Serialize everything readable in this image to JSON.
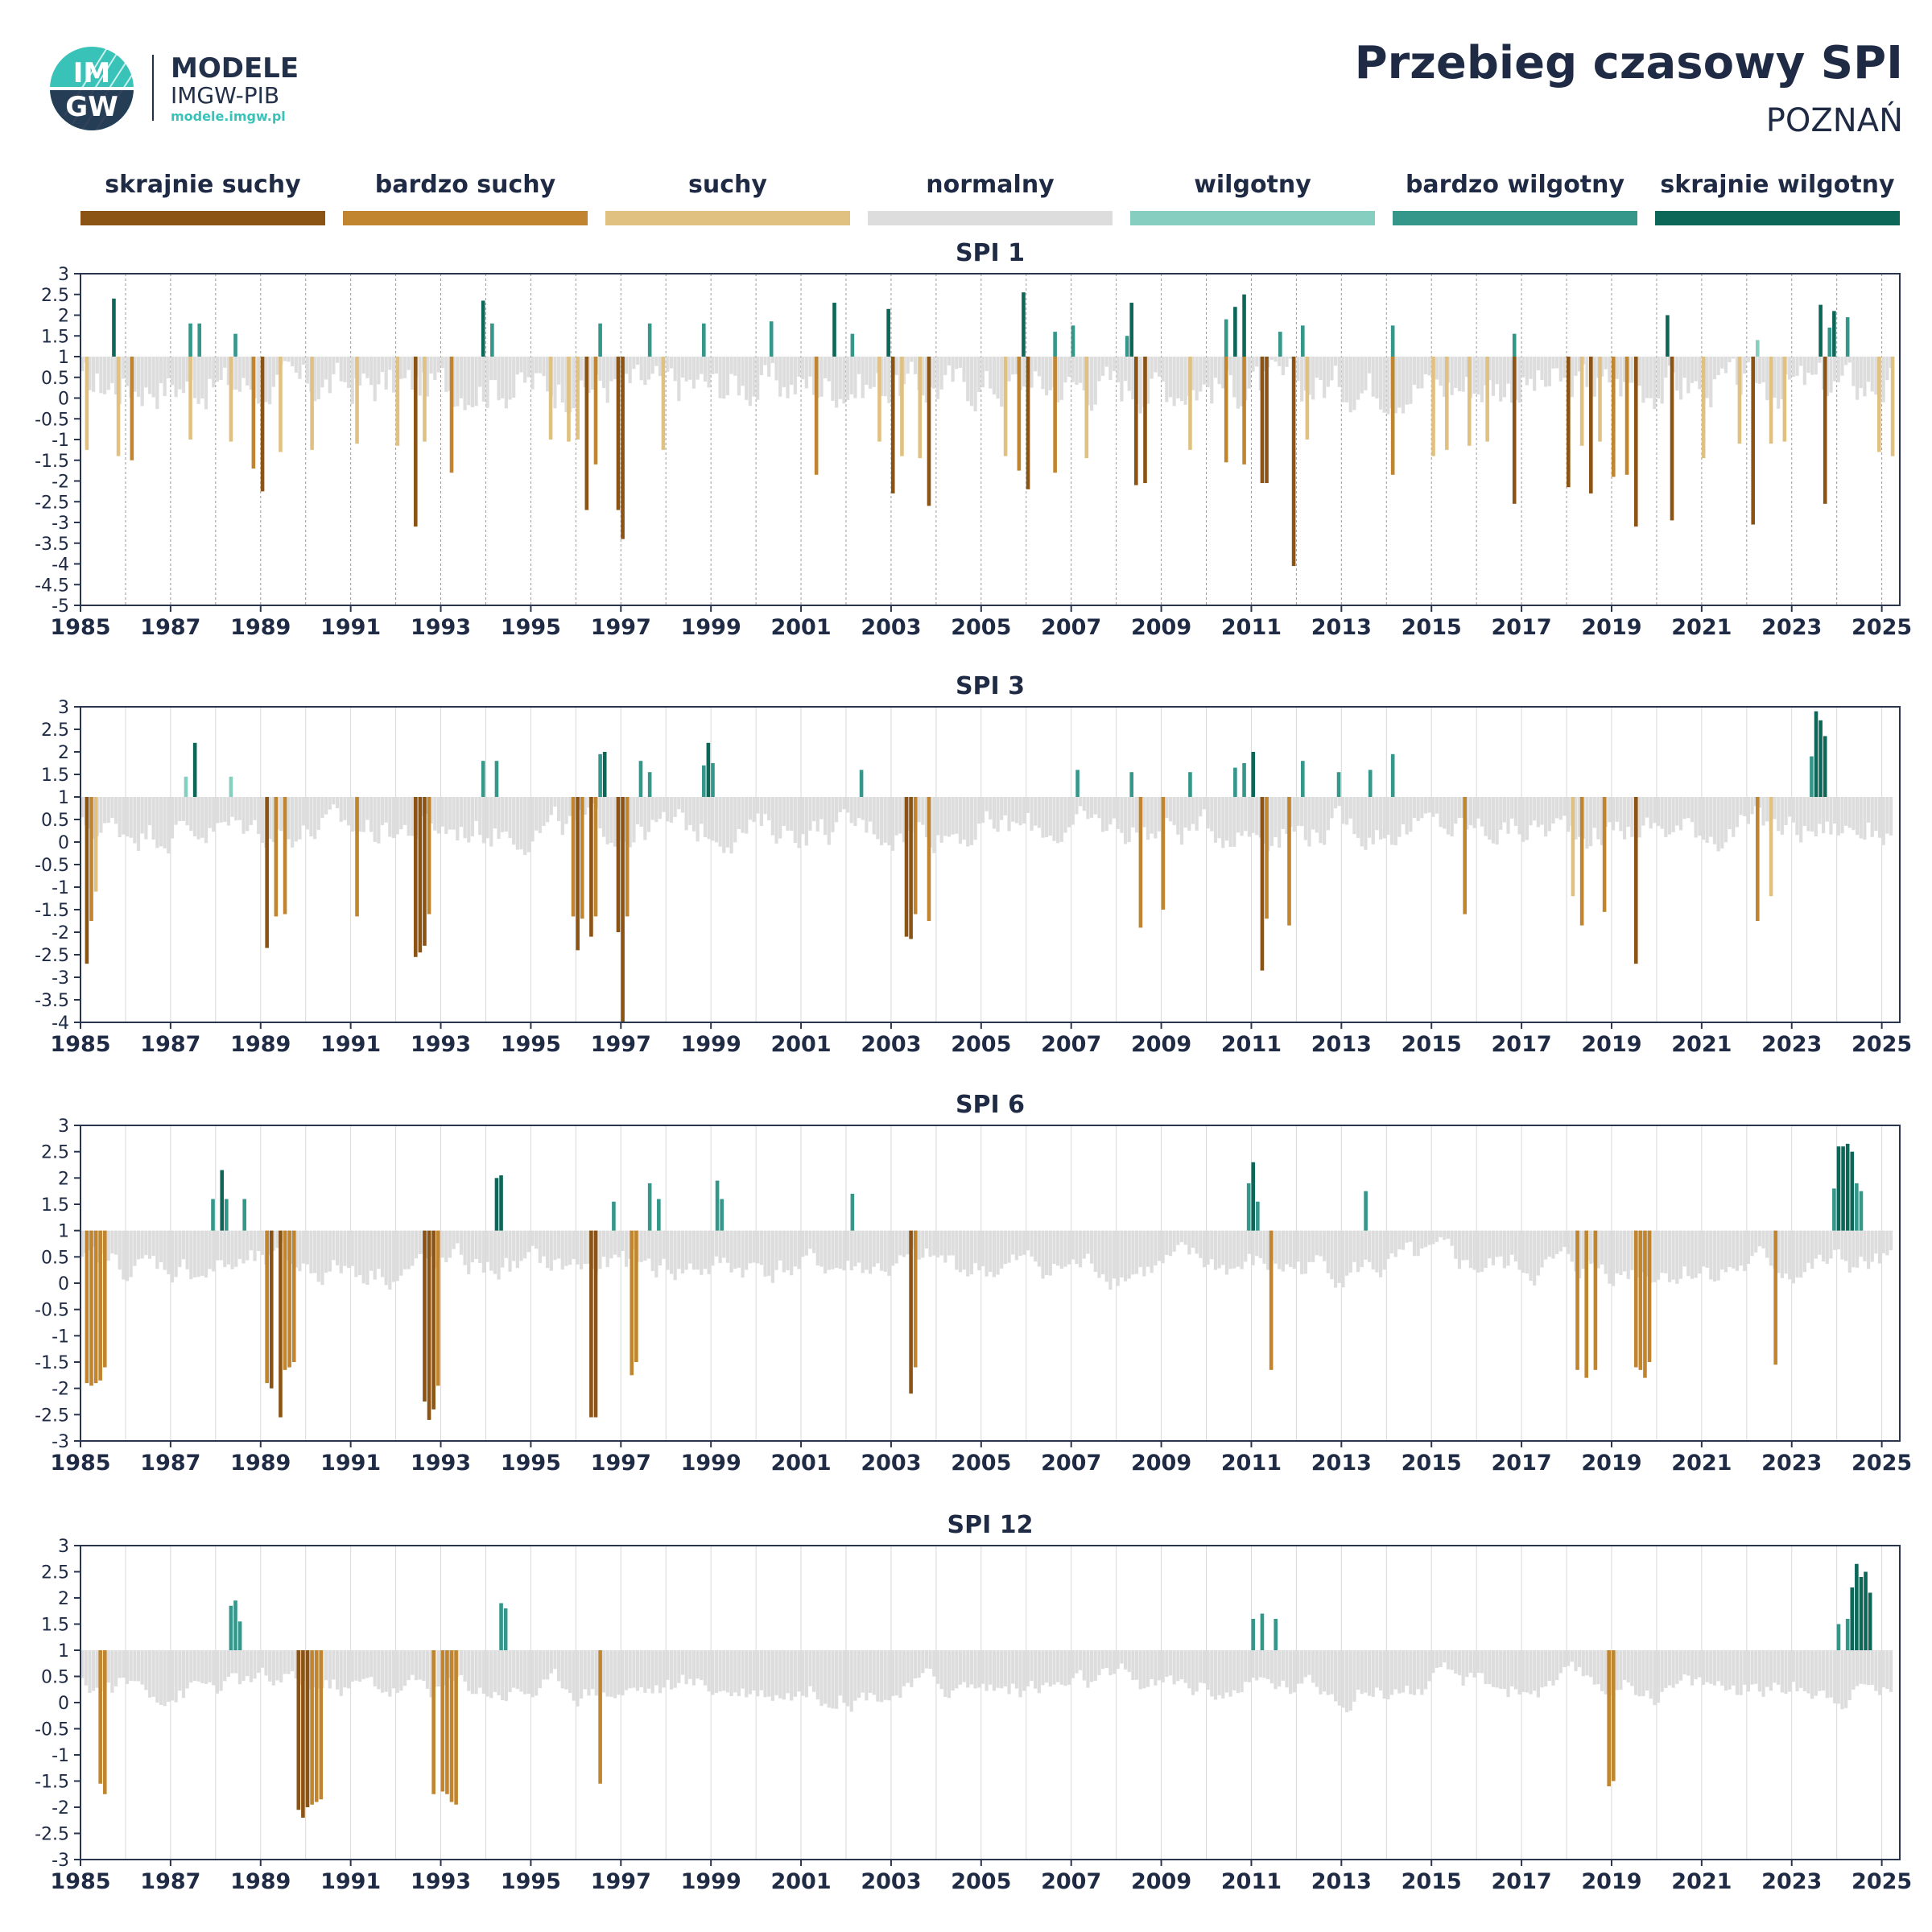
{
  "header": {
    "brand_title": "MODELE",
    "brand_subtitle": "IMGW-PIB",
    "brand_url": "modele.imgw.pl",
    "logo_text_top": "IM",
    "logo_text_bottom": "GW",
    "title": "Przebieg czasowy SPI",
    "subtitle": "POZNAŃ"
  },
  "legend": [
    {
      "label": "skrajnie suchy",
      "color": "#8c5414"
    },
    {
      "label": "bardzo suchy",
      "color": "#c0852e"
    },
    {
      "label": "suchy",
      "color": "#e0c182"
    },
    {
      "label": "normalny",
      "color": "#dddddd"
    },
    {
      "label": "wilgotny",
      "color": "#86cfc0"
    },
    {
      "label": "bardzo wilgotny",
      "color": "#35968a"
    },
    {
      "label": "skrajnie wilgotny",
      "color": "#0d6758"
    }
  ],
  "chart_data": [
    {
      "type": "bar",
      "title": "SPI 1",
      "x_ticks": [
        "1985",
        "1987",
        "1989",
        "1991",
        "1993",
        "1995",
        "1997",
        "1999",
        "2001",
        "2003",
        "2005",
        "2007",
        "2009",
        "2011",
        "2013",
        "2015",
        "2017",
        "2019",
        "2021",
        "2023",
        "2025"
      ],
      "y_ticks": [
        "3",
        "2.5",
        "2",
        "1.5",
        "1",
        "0.5",
        "0",
        "-0.5",
        "-1",
        "-1.5",
        "-2",
        "-2.5",
        "-3",
        "-3.5",
        "-4",
        "-4.5",
        "-5"
      ],
      "y_range": [
        -5,
        3
      ],
      "x_range": [
        1985,
        2025.4
      ],
      "events": [
        [
          1985.7,
          2.4
        ],
        [
          1987.4,
          1.8
        ],
        [
          1987.6,
          1.8
        ],
        [
          1988.4,
          1.55
        ],
        [
          1993.9,
          2.35
        ],
        [
          1994.1,
          1.8
        ],
        [
          1996.5,
          1.8
        ],
        [
          1997.6,
          1.8
        ],
        [
          1998.8,
          1.8
        ],
        [
          2000.3,
          1.85
        ],
        [
          2001.7,
          2.3
        ],
        [
          2002.1,
          1.55
        ],
        [
          2002.9,
          2.15
        ],
        [
          2005.9,
          2.55
        ],
        [
          2006.6,
          1.6
        ],
        [
          2007.0,
          1.75
        ],
        [
          2008.2,
          1.5
        ],
        [
          2008.3,
          2.3
        ],
        [
          2010.4,
          1.9
        ],
        [
          2010.6,
          2.2
        ],
        [
          2010.8,
          2.5
        ],
        [
          2011.6,
          1.6
        ],
        [
          2012.1,
          1.75
        ],
        [
          2014.1,
          1.75
        ],
        [
          2016.8,
          1.55
        ],
        [
          2020.2,
          2.0
        ],
        [
          2022.2,
          1.4
        ],
        [
          2023.6,
          2.25
        ],
        [
          2023.8,
          1.7
        ],
        [
          2023.9,
          2.1
        ],
        [
          2024.2,
          1.95
        ],
        [
          1985.1,
          -1.25
        ],
        [
          1985.8,
          -1.4
        ],
        [
          1986.1,
          -1.5
        ],
        [
          1987.4,
          -1.0
        ],
        [
          1988.3,
          -1.05
        ],
        [
          1988.8,
          -1.7
        ],
        [
          1989.0,
          -2.25
        ],
        [
          1989.4,
          -1.3
        ],
        [
          1990.1,
          -1.25
        ],
        [
          1991.1,
          -1.1
        ],
        [
          1992.0,
          -1.15
        ],
        [
          1992.4,
          -3.1
        ],
        [
          1992.6,
          -1.05
        ],
        [
          1993.2,
          -1.8
        ],
        [
          1995.4,
          -1.0
        ],
        [
          1995.8,
          -1.05
        ],
        [
          1996.0,
          -1.0
        ],
        [
          1996.2,
          -2.7
        ],
        [
          1996.4,
          -1.6
        ],
        [
          1996.9,
          -2.7
        ],
        [
          1997.0,
          -3.4
        ],
        [
          1997.9,
          -1.25
        ],
        [
          2001.3,
          -1.85
        ],
        [
          2002.7,
          -1.05
        ],
        [
          2003.0,
          -2.3
        ],
        [
          2003.2,
          -1.4
        ],
        [
          2003.6,
          -1.45
        ],
        [
          2003.8,
          -2.6
        ],
        [
          2005.5,
          -1.4
        ],
        [
          2005.8,
          -1.75
        ],
        [
          2006.0,
          -2.2
        ],
        [
          2006.6,
          -1.8
        ],
        [
          2007.3,
          -1.45
        ],
        [
          2008.4,
          -2.1
        ],
        [
          2008.6,
          -2.05
        ],
        [
          2009.6,
          -1.25
        ],
        [
          2010.4,
          -1.55
        ],
        [
          2010.8,
          -1.6
        ],
        [
          2011.2,
          -2.05
        ],
        [
          2011.3,
          -2.05
        ],
        [
          2011.9,
          -4.05
        ],
        [
          2012.2,
          -1.0
        ],
        [
          2014.1,
          -1.85
        ],
        [
          2015.0,
          -1.4
        ],
        [
          2015.3,
          -1.25
        ],
        [
          2015.8,
          -1.15
        ],
        [
          2016.2,
          -1.05
        ],
        [
          2016.8,
          -2.55
        ],
        [
          2018.0,
          -2.15
        ],
        [
          2018.3,
          -1.15
        ],
        [
          2018.5,
          -2.3
        ],
        [
          2018.7,
          -1.05
        ],
        [
          2019.0,
          -1.9
        ],
        [
          2019.3,
          -1.85
        ],
        [
          2019.5,
          -3.1
        ],
        [
          2020.3,
          -2.95
        ],
        [
          2021.0,
          -1.45
        ],
        [
          2021.8,
          -1.1
        ],
        [
          2022.1,
          -3.05
        ],
        [
          2022.5,
          -1.1
        ],
        [
          2022.8,
          -1.05
        ],
        [
          2023.7,
          -2.55
        ],
        [
          2024.9,
          -1.3
        ],
        [
          2025.2,
          -1.4
        ]
      ]
    },
    {
      "type": "bar",
      "title": "SPI 3",
      "x_ticks": [
        "1985",
        "1987",
        "1989",
        "1991",
        "1993",
        "1995",
        "1997",
        "1999",
        "2001",
        "2003",
        "2005",
        "2007",
        "2009",
        "2011",
        "2013",
        "2015",
        "2017",
        "2019",
        "2021",
        "2023",
        "2025"
      ],
      "y_ticks": [
        "3",
        "2.5",
        "2",
        "1.5",
        "1",
        "0.5",
        "0",
        "-0.5",
        "-1",
        "-1.5",
        "-2",
        "-2.5",
        "-3",
        "-3.5",
        "-4"
      ],
      "y_range": [
        -4,
        3
      ],
      "x_range": [
        1985,
        2025.4
      ],
      "events": [
        [
          1987.5,
          2.2
        ],
        [
          1987.3,
          1.45
        ],
        [
          1988.3,
          1.45
        ],
        [
          1993.9,
          1.8
        ],
        [
          1994.2,
          1.8
        ],
        [
          1996.5,
          1.95
        ],
        [
          1996.6,
          2.0
        ],
        [
          1997.4,
          1.8
        ],
        [
          1997.6,
          1.55
        ],
        [
          1998.8,
          1.7
        ],
        [
          1998.9,
          2.2
        ],
        [
          1999.0,
          1.75
        ],
        [
          2002.3,
          1.6
        ],
        [
          2007.1,
          1.6
        ],
        [
          2008.3,
          1.55
        ],
        [
          2009.6,
          1.55
        ],
        [
          2010.6,
          1.65
        ],
        [
          2010.8,
          1.75
        ],
        [
          2011.0,
          2.0
        ],
        [
          2012.1,
          1.8
        ],
        [
          2012.9,
          1.55
        ],
        [
          2013.6,
          1.6
        ],
        [
          2014.1,
          1.95
        ],
        [
          2023.4,
          1.9
        ],
        [
          2023.5,
          2.9
        ],
        [
          2023.6,
          2.7
        ],
        [
          2023.7,
          2.35
        ],
        [
          1985.1,
          -2.7
        ],
        [
          1985.2,
          -1.75
        ],
        [
          1985.3,
          -1.1
        ],
        [
          1989.1,
          -2.35
        ],
        [
          1989.3,
          -1.65
        ],
        [
          1989.5,
          -1.6
        ],
        [
          1991.1,
          -1.65
        ],
        [
          1992.4,
          -2.55
        ],
        [
          1992.5,
          -2.45
        ],
        [
          1992.6,
          -2.3
        ],
        [
          1992.7,
          -1.6
        ],
        [
          1995.9,
          -1.65
        ],
        [
          1996.0,
          -2.4
        ],
        [
          1996.1,
          -1.7
        ],
        [
          1996.3,
          -2.1
        ],
        [
          1996.4,
          -1.65
        ],
        [
          1996.9,
          -2.0
        ],
        [
          1997.0,
          -4.0
        ],
        [
          1997.1,
          -1.65
        ],
        [
          2003.3,
          -2.1
        ],
        [
          2003.4,
          -2.15
        ],
        [
          2003.5,
          -1.6
        ],
        [
          2003.8,
          -1.75
        ],
        [
          2008.5,
          -1.9
        ],
        [
          2009.0,
          -1.5
        ],
        [
          2011.2,
          -2.85
        ],
        [
          2011.3,
          -1.7
        ],
        [
          2011.8,
          -1.85
        ],
        [
          2015.7,
          -1.6
        ],
        [
          2018.1,
          -1.2
        ],
        [
          2018.3,
          -1.85
        ],
        [
          2018.8,
          -1.55
        ],
        [
          2019.5,
          -2.7
        ],
        [
          2022.2,
          -1.75
        ],
        [
          2022.5,
          -1.2
        ]
      ]
    },
    {
      "type": "bar",
      "title": "SPI 6",
      "x_ticks": [
        "1985",
        "1987",
        "1989",
        "1991",
        "1993",
        "1995",
        "1997",
        "1999",
        "2001",
        "2003",
        "2005",
        "2007",
        "2009",
        "2011",
        "2013",
        "2015",
        "2017",
        "2019",
        "2021",
        "2023",
        "2025"
      ],
      "y_ticks": [
        "3",
        "2.5",
        "2",
        "1.5",
        "1",
        "0.5",
        "0",
        "-0.5",
        "-1",
        "-1.5",
        "-2",
        "-2.5",
        "-3"
      ],
      "y_range": [
        -3,
        3
      ],
      "x_range": [
        1985,
        2025.4
      ],
      "events": [
        [
          1987.9,
          1.6
        ],
        [
          1988.1,
          2.15
        ],
        [
          1988.2,
          1.6
        ],
        [
          1988.6,
          1.6
        ],
        [
          1994.2,
          2.0
        ],
        [
          1994.3,
          2.05
        ],
        [
          1996.8,
          1.55
        ],
        [
          1997.6,
          1.9
        ],
        [
          1997.8,
          1.6
        ],
        [
          1999.1,
          1.95
        ],
        [
          1999.2,
          1.6
        ],
        [
          2002.1,
          1.7
        ],
        [
          2010.9,
          1.9
        ],
        [
          2011.0,
          2.3
        ],
        [
          2011.1,
          1.55
        ],
        [
          2013.5,
          1.75
        ],
        [
          2023.9,
          1.8
        ],
        [
          2024.0,
          2.6
        ],
        [
          2024.1,
          2.6
        ],
        [
          2024.2,
          2.65
        ],
        [
          2024.3,
          2.5
        ],
        [
          2024.4,
          1.9
        ],
        [
          2024.5,
          1.75
        ],
        [
          1985.1,
          -1.9
        ],
        [
          1985.2,
          -1.95
        ],
        [
          1985.3,
          -1.9
        ],
        [
          1985.4,
          -1.85
        ],
        [
          1985.5,
          -1.6
        ],
        [
          1989.1,
          -1.9
        ],
        [
          1989.2,
          -2.0
        ],
        [
          1989.4,
          -2.55
        ],
        [
          1989.5,
          -1.65
        ],
        [
          1989.6,
          -1.6
        ],
        [
          1989.7,
          -1.5
        ],
        [
          1992.6,
          -2.25
        ],
        [
          1992.7,
          -2.6
        ],
        [
          1992.8,
          -2.4
        ],
        [
          1992.9,
          -1.95
        ],
        [
          1996.3,
          -2.55
        ],
        [
          1996.4,
          -2.55
        ],
        [
          1997.2,
          -1.75
        ],
        [
          1997.3,
          -1.5
        ],
        [
          2003.4,
          -2.1
        ],
        [
          2003.5,
          -1.6
        ],
        [
          2011.4,
          -1.65
        ],
        [
          2018.2,
          -1.65
        ],
        [
          2018.4,
          -1.8
        ],
        [
          2018.6,
          -1.65
        ],
        [
          2019.5,
          -1.6
        ],
        [
          2019.6,
          -1.65
        ],
        [
          2019.7,
          -1.8
        ],
        [
          2019.8,
          -1.5
        ],
        [
          2022.6,
          -1.55
        ]
      ]
    },
    {
      "type": "bar",
      "title": "SPI 12",
      "x_ticks": [
        "1985",
        "1987",
        "1989",
        "1991",
        "1993",
        "1995",
        "1997",
        "1999",
        "2001",
        "2003",
        "2005",
        "2007",
        "2009",
        "2011",
        "2013",
        "2015",
        "2017",
        "2019",
        "2021",
        "2023",
        "2025"
      ],
      "y_ticks": [
        "3",
        "2.5",
        "2",
        "1.5",
        "1",
        "0.5",
        "0",
        "-0.5",
        "-1",
        "-1.5",
        "-2",
        "-2.5",
        "-3"
      ],
      "y_range": [
        -3,
        3
      ],
      "x_range": [
        1985,
        2025.4
      ],
      "events": [
        [
          1988.3,
          1.85
        ],
        [
          1988.4,
          1.95
        ],
        [
          1988.5,
          1.55
        ],
        [
          1994.3,
          1.9
        ],
        [
          1994.4,
          1.8
        ],
        [
          2011.0,
          1.6
        ],
        [
          2011.2,
          1.7
        ],
        [
          2011.5,
          1.6
        ],
        [
          2024.0,
          1.5
        ],
        [
          2024.2,
          1.6
        ],
        [
          2024.3,
          2.2
        ],
        [
          2024.4,
          2.65
        ],
        [
          2024.5,
          2.4
        ],
        [
          2024.6,
          2.5
        ],
        [
          2024.7,
          2.1
        ],
        [
          1985.4,
          -1.55
        ],
        [
          1985.5,
          -1.75
        ],
        [
          1989.8,
          -2.05
        ],
        [
          1989.9,
          -2.2
        ],
        [
          1990.0,
          -2.0
        ],
        [
          1990.1,
          -1.95
        ],
        [
          1990.2,
          -1.9
        ],
        [
          1990.3,
          -1.85
        ],
        [
          1992.8,
          -1.75
        ],
        [
          1993.0,
          -1.7
        ],
        [
          1993.1,
          -1.75
        ],
        [
          1993.2,
          -1.9
        ],
        [
          1993.3,
          -1.95
        ],
        [
          1996.5,
          -1.55
        ],
        [
          2018.9,
          -1.6
        ],
        [
          2019.0,
          -1.5
        ]
      ]
    }
  ]
}
